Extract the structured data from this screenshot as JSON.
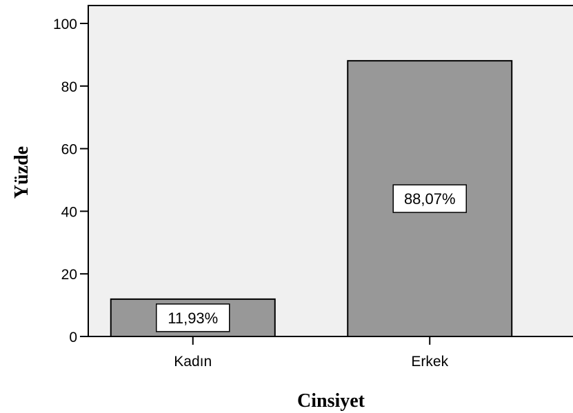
{
  "chart_data": {
    "type": "bar",
    "categories": [
      "Kadın",
      "Erkek"
    ],
    "values": [
      11.93,
      88.07
    ],
    "data_labels": [
      "11,93%",
      "88,07%"
    ],
    "xlabel": "Cinsiyet",
    "ylabel": "Yüzde",
    "ylim": [
      0,
      100
    ],
    "yticks": [
      "0",
      "20",
      "40",
      "60",
      "80",
      "100"
    ],
    "grid": false,
    "legend": "none",
    "colors": {
      "plot_background": "#f0f0f0",
      "bar_fill": "#989898",
      "bar_stroke": "#000000",
      "label_box": "#ffffff"
    }
  }
}
